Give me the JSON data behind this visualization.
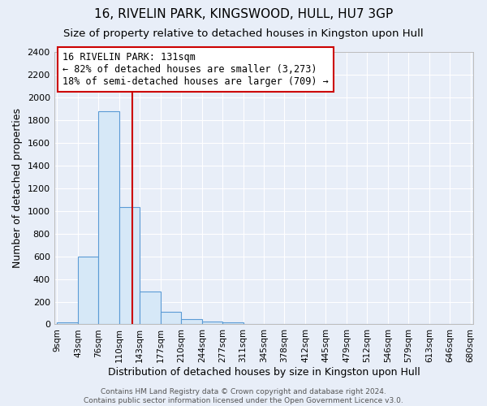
{
  "title": "16, RIVELIN PARK, KINGSWOOD, HULL, HU7 3GP",
  "subtitle": "Size of property relative to detached houses in Kingston upon Hull",
  "xlabel": "Distribution of detached houses by size in Kingston upon Hull",
  "ylabel": "Number of detached properties",
  "bin_edges": [
    9,
    43,
    76,
    110,
    143,
    177,
    210,
    244,
    277,
    311,
    345,
    378,
    412,
    445,
    479,
    512,
    546,
    579,
    613,
    646,
    680
  ],
  "bar_heights": [
    20,
    600,
    1880,
    1030,
    290,
    110,
    45,
    25,
    20,
    0,
    0,
    0,
    0,
    0,
    0,
    0,
    0,
    0,
    0,
    0
  ],
  "bar_color": "#d6e8f7",
  "bar_edge_color": "#5b9bd5",
  "vline_x": 131,
  "vline_color": "#cc0000",
  "ylim": [
    0,
    2400
  ],
  "yticks": [
    0,
    200,
    400,
    600,
    800,
    1000,
    1200,
    1400,
    1600,
    1800,
    2000,
    2200,
    2400
  ],
  "annotation_text": "16 RIVELIN PARK: 131sqm\n← 82% of detached houses are smaller (3,273)\n18% of semi-detached houses are larger (709) →",
  "footnote": "Contains HM Land Registry data © Crown copyright and database right 2024.\nContains public sector information licensed under the Open Government Licence v3.0.",
  "bg_color": "#e8eef8",
  "grid_color": "#ffffff",
  "title_fontsize": 11,
  "subtitle_fontsize": 9.5,
  "tick_label_fontsize": 7.5,
  "axis_label_fontsize": 9,
  "footnote_fontsize": 6.5
}
